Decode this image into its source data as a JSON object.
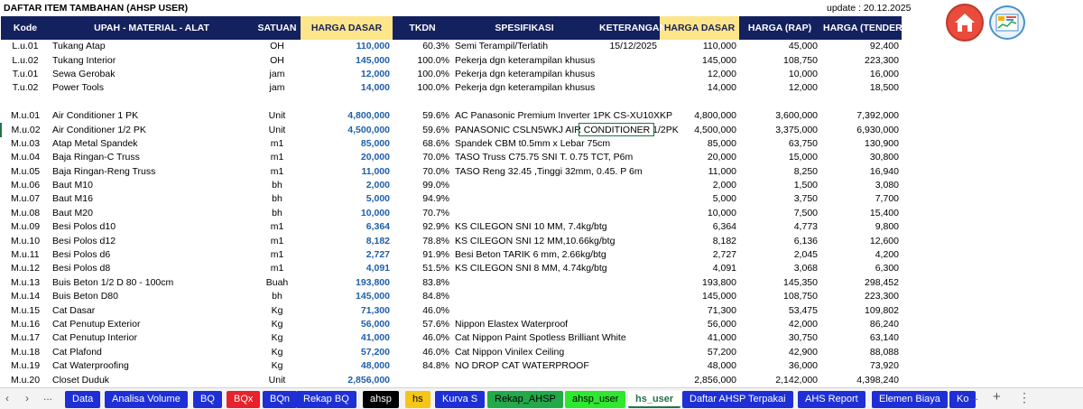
{
  "sheet_title": "DAFTAR ITEM TAMBAHAN (AHSP USER)",
  "update_label": "update : 20.12.2025",
  "buttons": {
    "home": "home-icon",
    "chart": "chart-icon"
  },
  "headers": {
    "kode": "Kode",
    "uraian": "UPAH - MATERIAL - ALAT",
    "satuan": "SATUAN",
    "harga_dasar": "HARGA DASAR",
    "tkdn": "TKDN",
    "spesifikasi": "SPESIFIKASI",
    "keterangan": "KETERANGAN",
    "harga_dasar2": "HARGA DASAR",
    "harga_rap": "HARGA (RAP)",
    "harga_tender": "HARGA (TENDER)"
  },
  "rows": [
    {
      "kode": "L.u.01",
      "uraian": "Tukang Atap",
      "satuan": "OH",
      "harga_dasar": "110,000",
      "tkdn": "60.3%",
      "spesifikasi": "Semi Terampil/Terlatih",
      "keterangan": "15/12/2025",
      "hd2": "110,000",
      "rap": "45,000",
      "tender": "92,400"
    },
    {
      "kode": "L.u.02",
      "uraian": "Tukang Interior",
      "satuan": "OH",
      "harga_dasar": "145,000",
      "tkdn": "100.0%",
      "spesifikasi": "Pekerja dgn keterampilan khusus",
      "keterangan": "",
      "hd2": "145,000",
      "rap": "108,750",
      "tender": "223,300"
    },
    {
      "kode": "T.u.01",
      "uraian": "Sewa Gerobak",
      "satuan": "jam",
      "harga_dasar": "12,000",
      "tkdn": "100.0%",
      "spesifikasi": "Pekerja dgn keterampilan khusus",
      "keterangan": "",
      "hd2": "12,000",
      "rap": "10,000",
      "tender": "16,000"
    },
    {
      "kode": "T.u.02",
      "uraian": "Power Tools",
      "satuan": "jam",
      "harga_dasar": "14,000",
      "tkdn": "100.0%",
      "spesifikasi": "Pekerja dgn keterampilan khusus",
      "keterangan": "",
      "hd2": "14,000",
      "rap": "12,000",
      "tender": "18,500"
    },
    {
      "kode": "",
      "uraian": "",
      "satuan": "",
      "harga_dasar": "",
      "tkdn": "",
      "spesifikasi": "",
      "keterangan": "",
      "hd2": "",
      "rap": "",
      "tender": ""
    },
    {
      "kode": "M.u.01",
      "uraian": "Air Conditioner 1 PK",
      "satuan": "Unit",
      "harga_dasar": "4,800,000",
      "tkdn": "59.6%",
      "spesifikasi": "AC Panasonic Premium Inverter 1PK CS-XU10XKP",
      "keterangan": "",
      "hd2": "4,800,000",
      "rap": "3,600,000",
      "tender": "7,392,000"
    },
    {
      "kode": "M.u.02",
      "uraian": "Air Conditioner 1/2 PK",
      "satuan": "Unit",
      "harga_dasar": "4,500,000",
      "tkdn": "59.6%",
      "spesifikasi": "PANASONIC CSLN5WKJ AIR CONDITIONER 1/2PK",
      "keterangan": "",
      "hd2": "4,500,000",
      "rap": "3,375,000",
      "tender": "6,930,000"
    },
    {
      "kode": "M.u.03",
      "uraian": "Atap Metal Spandek",
      "satuan": "m1",
      "harga_dasar": "85,000",
      "tkdn": "68.6%",
      "spesifikasi": "Spandek CBM t0.5mm x Lebar 75cm",
      "keterangan": "",
      "hd2": "85,000",
      "rap": "63,750",
      "tender": "130,900"
    },
    {
      "kode": "M.u.04",
      "uraian": "Baja Ringan-C Truss",
      "satuan": "m1",
      "harga_dasar": "20,000",
      "tkdn": "70.0%",
      "spesifikasi": "TASO Truss C75.75 SNI T. 0.75 TCT, P6m",
      "keterangan": "",
      "hd2": "20,000",
      "rap": "15,000",
      "tender": "30,800"
    },
    {
      "kode": "M.u.05",
      "uraian": "Baja Ringan-Reng Truss",
      "satuan": "m1",
      "harga_dasar": "11,000",
      "tkdn": "70.0%",
      "spesifikasi": "TASO Reng 32.45 ,Tinggi 32mm, 0.45. P 6m",
      "keterangan": "",
      "hd2": "11,000",
      "rap": "8,250",
      "tender": "16,940"
    },
    {
      "kode": "M.u.06",
      "uraian": "Baut M10",
      "satuan": "bh",
      "harga_dasar": "2,000",
      "tkdn": "99.0%",
      "spesifikasi": "",
      "keterangan": "",
      "hd2": "2,000",
      "rap": "1,500",
      "tender": "3,080"
    },
    {
      "kode": "M.u.07",
      "uraian": "Baut M16",
      "satuan": "bh",
      "harga_dasar": "5,000",
      "tkdn": "94.9%",
      "spesifikasi": "",
      "keterangan": "",
      "hd2": "5,000",
      "rap": "3,750",
      "tender": "7,700"
    },
    {
      "kode": "M.u.08",
      "uraian": "Baut M20",
      "satuan": "bh",
      "harga_dasar": "10,000",
      "tkdn": "70.7%",
      "spesifikasi": "",
      "keterangan": "",
      "hd2": "10,000",
      "rap": "7,500",
      "tender": "15,400"
    },
    {
      "kode": "M.u.09",
      "uraian": "Besi Polos d10",
      "satuan": "m1",
      "harga_dasar": "6,364",
      "tkdn": "92.9%",
      "spesifikasi": "KS CILEGON SNI 10 MM, 7.4kg/btg",
      "keterangan": "",
      "hd2": "6,364",
      "rap": "4,773",
      "tender": "9,800"
    },
    {
      "kode": "M.u.10",
      "uraian": "Besi Polos d12",
      "satuan": "m1",
      "harga_dasar": "8,182",
      "tkdn": "78.8%",
      "spesifikasi": "KS CILEGON SNI 12 MM,10.66kg/btg",
      "keterangan": "",
      "hd2": "8,182",
      "rap": "6,136",
      "tender": "12,600"
    },
    {
      "kode": "M.u.11",
      "uraian": "Besi Polos d6",
      "satuan": "m1",
      "harga_dasar": "2,727",
      "tkdn": "91.9%",
      "spesifikasi": "Besi Beton TARIK 6 mm, 2.66kg/btg",
      "keterangan": "",
      "hd2": "2,727",
      "rap": "2,045",
      "tender": "4,200"
    },
    {
      "kode": "M.u.12",
      "uraian": "Besi Polos d8",
      "satuan": "m1",
      "harga_dasar": "4,091",
      "tkdn": "51.5%",
      "spesifikasi": "KS CILEGON SNI 8 MM, 4.74kg/btg",
      "keterangan": "",
      "hd2": "4,091",
      "rap": "3,068",
      "tender": "6,300"
    },
    {
      "kode": "M.u.13",
      "uraian": "Buis Beton 1/2 D 80 - 100cm",
      "satuan": "Buah",
      "harga_dasar": "193,800",
      "tkdn": "83.8%",
      "spesifikasi": "",
      "keterangan": "",
      "hd2": "193,800",
      "rap": "145,350",
      "tender": "298,452"
    },
    {
      "kode": "M.u.14",
      "uraian": "Buis Beton D80",
      "satuan": "bh",
      "harga_dasar": "145,000",
      "tkdn": "84.8%",
      "spesifikasi": "",
      "keterangan": "",
      "hd2": "145,000",
      "rap": "108,750",
      "tender": "223,300"
    },
    {
      "kode": "M.u.15",
      "uraian": "Cat Dasar",
      "satuan": "Kg",
      "harga_dasar": "71,300",
      "tkdn": "46.0%",
      "spesifikasi": "",
      "keterangan": "",
      "hd2": "71,300",
      "rap": "53,475",
      "tender": "109,802"
    },
    {
      "kode": "M.u.16",
      "uraian": "Cat Penutup Exterior",
      "satuan": "Kg",
      "harga_dasar": "56,000",
      "tkdn": "57.6%",
      "spesifikasi": "Nippon Elastex Waterproof",
      "keterangan": "",
      "hd2": "56,000",
      "rap": "42,000",
      "tender": "86,240"
    },
    {
      "kode": "M.u.17",
      "uraian": "Cat Penutup Interior",
      "satuan": "Kg",
      "harga_dasar": "41,000",
      "tkdn": "46.0%",
      "spesifikasi": "Cat Nippon Paint Spotless Brilliant White",
      "keterangan": "",
      "hd2": "41,000",
      "rap": "30,750",
      "tender": "63,140"
    },
    {
      "kode": "M.u.18",
      "uraian": "Cat Plafond",
      "satuan": "Kg",
      "harga_dasar": "57,200",
      "tkdn": "46.0%",
      "spesifikasi": "Cat Nippon Vinilex Ceiling",
      "keterangan": "",
      "hd2": "57,200",
      "rap": "42,900",
      "tender": "88,088"
    },
    {
      "kode": "M.u.19",
      "uraian": "Cat Waterproofing",
      "satuan": "Kg",
      "harga_dasar": "48,000",
      "tkdn": "84.8%",
      "spesifikasi": "NO DROP CAT WATERPROOF",
      "keterangan": "",
      "hd2": "48,000",
      "rap": "36,000",
      "tender": "73,920"
    },
    {
      "kode": "M.u.20",
      "uraian": "Closet Duduk",
      "satuan": "Unit",
      "harga_dasar": "2,856,000",
      "tkdn": "",
      "spesifikasi": "",
      "keterangan": "",
      "hd2": "2,856,000",
      "rap": "2,142,000",
      "tender": "4,398,240"
    }
  ],
  "tabs": [
    {
      "label": "Data",
      "bg": "#1e2fd6",
      "fg": "#ffffff"
    },
    {
      "label": "Analisa Volume",
      "bg": "#1e2fd6",
      "fg": "#ffffff"
    },
    {
      "label": "BQ",
      "bg": "#1e2fd6",
      "fg": "#ffffff"
    },
    {
      "label": "BQx",
      "bg": "#e8212b",
      "fg": "#ffffff"
    },
    {
      "label": "BQn",
      "bg": "#1e2fd6",
      "fg": "#ffffff"
    },
    {
      "label": "Rekap BQ",
      "bg": "#1e2fd6",
      "fg": "#ffffff"
    },
    {
      "label": "ahsp",
      "bg": "#000000",
      "fg": "#ffffff"
    },
    {
      "label": "hs",
      "bg": "#f5c518",
      "fg": "#000000"
    },
    {
      "label": "Kurva S",
      "bg": "#1e2fd6",
      "fg": "#ffffff"
    },
    {
      "label": "Rekap_AHSP",
      "bg": "#22a94a",
      "fg": "#000000"
    },
    {
      "label": "ahsp_user",
      "bg": "#2ee82e",
      "fg": "#000000"
    },
    {
      "label": "hs_user",
      "bg": "#ffffff",
      "fg": "#217346",
      "active": true
    },
    {
      "label": "Daftar AHSP Terpakai",
      "bg": "#1e2fd6",
      "fg": "#ffffff"
    },
    {
      "label": "AHS Report",
      "bg": "#1e2fd6",
      "fg": "#ffffff"
    },
    {
      "label": "Elemen Biaya",
      "bg": "#1e2fd6",
      "fg": "#ffffff"
    },
    {
      "label": "Ko",
      "bg": "#1e2fd6",
      "fg": "#ffffff"
    }
  ],
  "nav": {
    "prev": "‹",
    "next": "›",
    "more_left": "...",
    "more_right": "...",
    "add": "+",
    "menu": "⋮"
  }
}
